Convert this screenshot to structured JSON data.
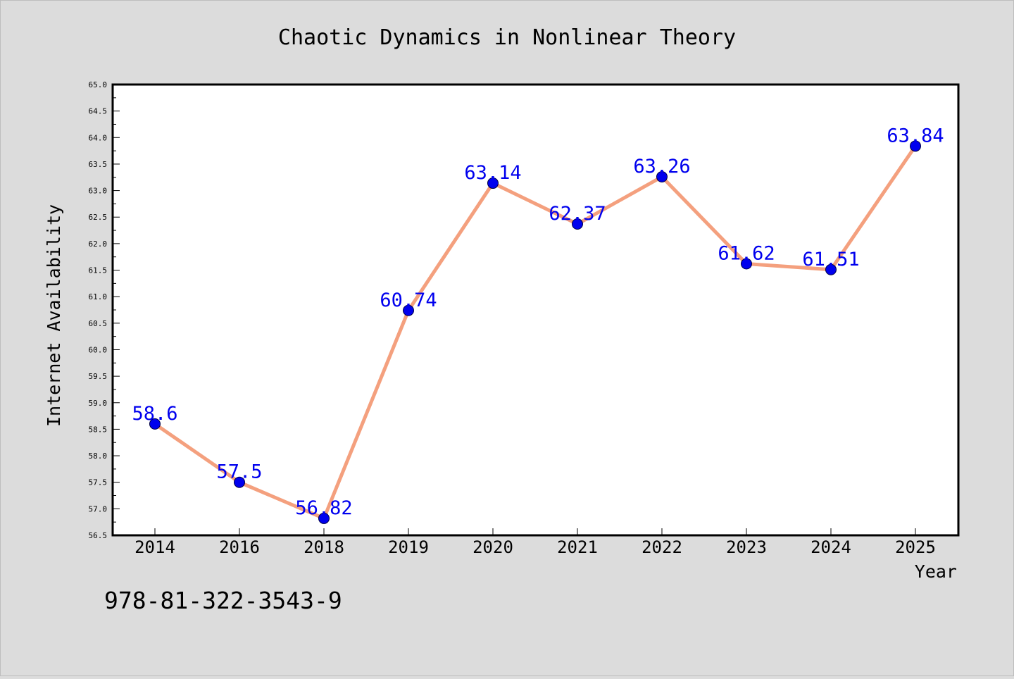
{
  "chart_data": {
    "type": "line",
    "title": "Chaotic Dynamics in Nonlinear Theory",
    "xlabel": "Year",
    "ylabel": "Internet Availability",
    "categories": [
      "2014",
      "2016",
      "2018",
      "2019",
      "2020",
      "2021",
      "2022",
      "2023",
      "2024",
      "2025"
    ],
    "series": [
      {
        "values": [
          58.6,
          57.5,
          56.82,
          60.74,
          63.14,
          62.37,
          63.26,
          61.62,
          61.51,
          63.84
        ],
        "data_labels": [
          "58.6",
          "57.5",
          "56.82",
          "60.74",
          "63.14",
          "62.37",
          "63.26",
          "61.62",
          "61.51",
          "63.84"
        ],
        "line_color": "#f4a07e",
        "marker_color": "#0000ee"
      }
    ],
    "ylim": [
      56.5,
      65.0
    ],
    "yticks": [
      "56.5",
      "57.0",
      "57.5",
      "58.0",
      "58.5",
      "59.0",
      "59.5",
      "60.0",
      "60.5",
      "61.0",
      "61.5",
      "62.0",
      "62.5",
      "63.0",
      "63.5",
      "64.0",
      "64.5",
      "65.0"
    ],
    "label_color": "#0000ee",
    "grid": false,
    "legend": "none"
  },
  "footer_text": "978-81-322-3543-9"
}
